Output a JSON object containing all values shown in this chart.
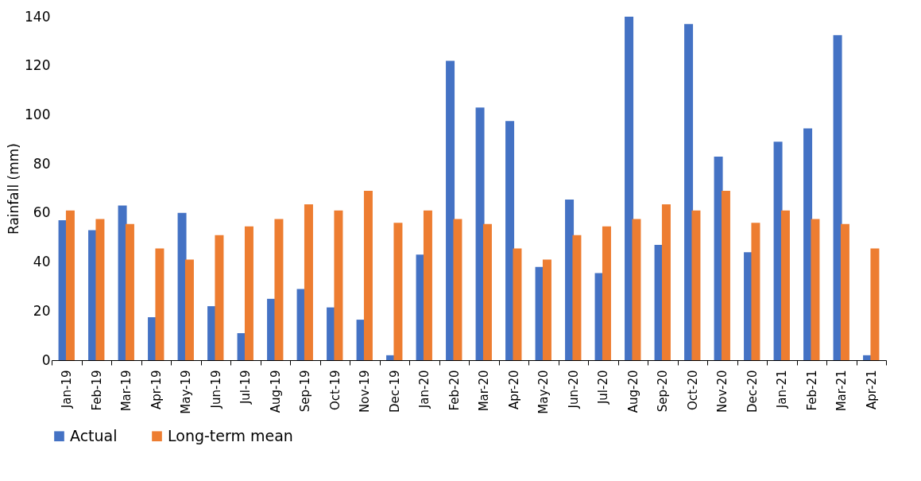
{
  "chart_data": {
    "type": "bar",
    "ylabel": "Rainfall (mm)",
    "categories": [
      "Jan-19",
      "Feb-19",
      "Mar-19",
      "Apr-19",
      "May-19",
      "Jun-19",
      "Jul-19",
      "Aug-19",
      "Sep-19",
      "Oct-19",
      "Nov-19",
      "Dec-19",
      "Jan-20",
      "Feb-20",
      "Mar-20",
      "Apr-20",
      "May-20",
      "Jun-20",
      "Jul-20",
      "Aug-20",
      "Sep-20",
      "Oct-20",
      "Nov-20",
      "Dec-20",
      "Jan-21",
      "Feb-21",
      "Mar-21",
      "Apr-21"
    ],
    "series": [
      {
        "name": "Actual",
        "color": "#4472c4",
        "values": [
          57,
          53,
          63,
          17.5,
          60,
          22,
          11,
          25,
          29,
          21.5,
          16.5,
          2,
          43,
          122,
          103,
          97.5,
          38,
          65.5,
          35.5,
          140,
          47,
          137,
          83,
          44,
          89,
          94.5,
          132.5,
          2
        ]
      },
      {
        "name": "Long-term mean",
        "color": "#ed7d31",
        "values": [
          61,
          57.5,
          55.5,
          45.5,
          41,
          51,
          54.5,
          57.5,
          63.5,
          61,
          69,
          56,
          61,
          57.5,
          55.5,
          45.5,
          41,
          51,
          54.5,
          57.5,
          63.5,
          61,
          69,
          56,
          61,
          57.5,
          55.5,
          45.5
        ]
      }
    ],
    "ylim": [
      0,
      140
    ],
    "yticks": [
      0,
      20,
      40,
      60,
      80,
      100,
      120,
      140
    ],
    "grid": false,
    "legend": "bottom"
  }
}
